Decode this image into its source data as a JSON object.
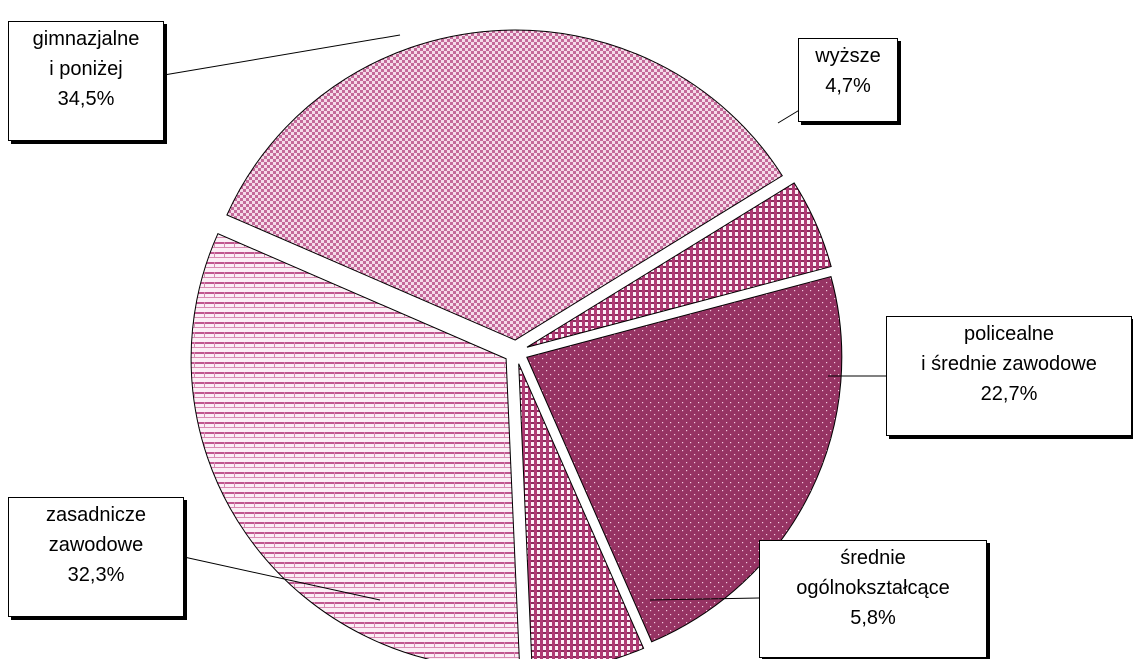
{
  "chart_data": {
    "type": "pie",
    "title": "",
    "slices": [
      {
        "label_lines": [
          "wyższe"
        ],
        "value_text": "4,7%",
        "value": 4.7,
        "color": "#b03a74",
        "pattern": "vstripe"
      },
      {
        "label_lines": [
          "policealne",
          "i średnie zawodowe"
        ],
        "value_text": "22,7%",
        "value": 22.7,
        "color": "#993366",
        "pattern": "dots"
      },
      {
        "label_lines": [
          "średnie",
          "ogólnokształcące"
        ],
        "value_text": "5,8%",
        "value": 5.8,
        "color": "#b03a74",
        "pattern": "vstripe"
      },
      {
        "label_lines": [
          "zasadnicze",
          "zawodowe"
        ],
        "value_text": "32,3%",
        "value": 32.3,
        "color": "#e7b6cf",
        "pattern": "hstripe"
      },
      {
        "label_lines": [
          "gimnazjalne",
          "i poniżej"
        ],
        "value_text": "34,5%",
        "value": 34.5,
        "color": "#e2aacb",
        "pattern": "checker"
      }
    ],
    "legend": "none"
  }
}
